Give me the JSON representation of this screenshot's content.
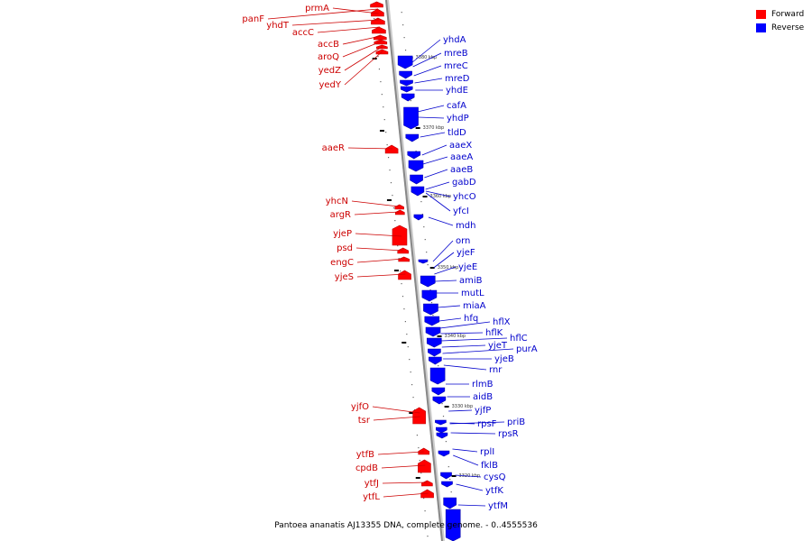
{
  "caption": "Pantoea ananatis AJ13355 DNA, complete genome. - 0..4555536",
  "legend": {
    "forward_label": "Forward",
    "forward_color": "#ff0000",
    "reverse_label": "Reverse",
    "reverse_color": "#0000ff"
  },
  "ticks": [
    "3380 kbp",
    "3370 kbp",
    "3360 kbp",
    "3350 kbp",
    "3340 kbp",
    "3330 kbp",
    "3320 kbp"
  ],
  "forward_genes": [
    "prmA",
    "panF",
    "yhdT",
    "accC",
    "accB",
    "aroQ",
    "yedZ",
    "yedY",
    "aaeR",
    "yhcN",
    "argR",
    "yjeP",
    "psd",
    "engC",
    "yjeS",
    "yjfO",
    "tsr",
    "ytfB",
    "cpdB",
    "ytfJ",
    "ytfL"
  ],
  "reverse_genes": [
    "yhdA",
    "mreB",
    "mreC",
    "mreD",
    "yhdE",
    "cafA",
    "yhdP",
    "tldD",
    "aaeX",
    "aaeA",
    "aaeB",
    "gabD",
    "yhcO",
    "yfcI",
    "mdh",
    "orn",
    "yjeF",
    "yjeE",
    "amiB",
    "mutL",
    "miaA",
    "hfq",
    "hflX",
    "hflK",
    "hflC",
    "yjeT",
    "purA",
    "yjeB",
    "rnr",
    "rlmB",
    "aidB",
    "yjfP",
    "rpsF",
    "priB",
    "rpsR",
    "rplI",
    "fklB",
    "cysQ",
    "ytfK",
    "ytfM"
  ]
}
